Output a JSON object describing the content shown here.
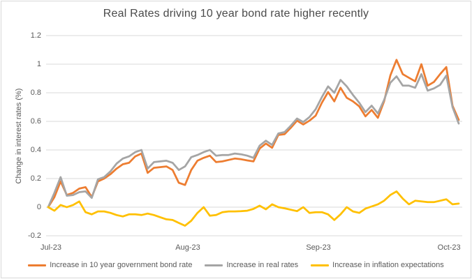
{
  "chart_data": {
    "type": "line",
    "title": "Real Rates driving 10 year bond rate higher recently",
    "xlabel": "",
    "ylabel": "Change in interest rates (%)",
    "ylim": [
      -0.2,
      1.2
    ],
    "grid": true,
    "legend_position": "bottom",
    "x_tick_labels": [
      "Jul-23",
      "Aug-23",
      "Sep-23",
      "Oct-23"
    ],
    "x_tick_indices": [
      0,
      22,
      43,
      64
    ],
    "y_tick_labels": [
      "1.2",
      "1",
      "0.8",
      "0.6",
      "0.4",
      "0.2",
      "0",
      "-0.2"
    ],
    "y_tick_values": [
      1.2,
      1.0,
      0.8,
      0.6,
      0.4,
      0.2,
      0.0,
      -0.2
    ],
    "series": [
      {
        "name": "Increase in 10 year government bond rate",
        "color": "#ED7D31",
        "values": [
          0.0,
          0.07,
          0.18,
          0.085,
          0.1,
          0.13,
          0.14,
          0.07,
          0.18,
          0.2,
          0.23,
          0.27,
          0.3,
          0.31,
          0.355,
          0.375,
          0.24,
          0.275,
          0.28,
          0.285,
          0.26,
          0.17,
          0.155,
          0.26,
          0.325,
          0.345,
          0.36,
          0.315,
          0.32,
          0.33,
          0.34,
          0.335,
          0.327,
          0.32,
          0.41,
          0.445,
          0.415,
          0.505,
          0.51,
          0.555,
          0.605,
          0.578,
          0.605,
          0.64,
          0.73,
          0.805,
          0.74,
          0.835,
          0.765,
          0.74,
          0.705,
          0.635,
          0.68,
          0.625,
          0.74,
          0.92,
          1.03,
          0.93,
          0.905,
          0.88,
          1.0,
          0.85,
          0.875,
          0.93,
          0.98,
          0.71,
          0.61
        ]
      },
      {
        "name": "Increase in real rates",
        "color": "#A5A5A5",
        "values": [
          0.0,
          0.1,
          0.21,
          0.08,
          0.085,
          0.105,
          0.11,
          0.065,
          0.195,
          0.21,
          0.25,
          0.305,
          0.34,
          0.355,
          0.385,
          0.4,
          0.27,
          0.315,
          0.32,
          0.325,
          0.31,
          0.26,
          0.285,
          0.35,
          0.365,
          0.385,
          0.4,
          0.36,
          0.365,
          0.365,
          0.375,
          0.37,
          0.36,
          0.345,
          0.43,
          0.465,
          0.435,
          0.515,
          0.525,
          0.57,
          0.62,
          0.595,
          0.63,
          0.685,
          0.77,
          0.845,
          0.8,
          0.89,
          0.845,
          0.785,
          0.73,
          0.665,
          0.71,
          0.655,
          0.75,
          0.87,
          0.915,
          0.85,
          0.85,
          0.835,
          0.93,
          0.815,
          0.83,
          0.855,
          0.92,
          0.7,
          0.585
        ]
      },
      {
        "name": "Increase in inflation expectations",
        "color": "#FFC000",
        "values": [
          0.0,
          -0.025,
          0.015,
          0.0,
          0.015,
          0.04,
          -0.035,
          -0.05,
          -0.03,
          -0.03,
          -0.04,
          -0.055,
          -0.065,
          -0.05,
          -0.05,
          -0.055,
          -0.045,
          -0.055,
          -0.07,
          -0.085,
          -0.09,
          -0.11,
          -0.13,
          -0.095,
          -0.04,
          0.0,
          -0.06,
          -0.055,
          -0.035,
          -0.03,
          -0.03,
          -0.028,
          -0.025,
          -0.012,
          0.01,
          -0.015,
          0.02,
          0.0,
          -0.008,
          -0.018,
          -0.028,
          0.0,
          -0.04,
          -0.035,
          -0.035,
          -0.05,
          -0.09,
          -0.05,
          0.0,
          -0.03,
          -0.04,
          -0.01,
          0.005,
          0.02,
          0.045,
          0.085,
          0.11,
          0.06,
          0.02,
          0.045,
          0.04,
          0.035,
          0.035,
          0.045,
          0.055,
          0.02,
          0.025
        ]
      }
    ]
  },
  "style": {
    "gridline_color": "#d9d9d9",
    "border_color": "#d9d9d9",
    "text_color": "#595959",
    "title_color": "#4a4a4a",
    "background": "#ffffff"
  }
}
